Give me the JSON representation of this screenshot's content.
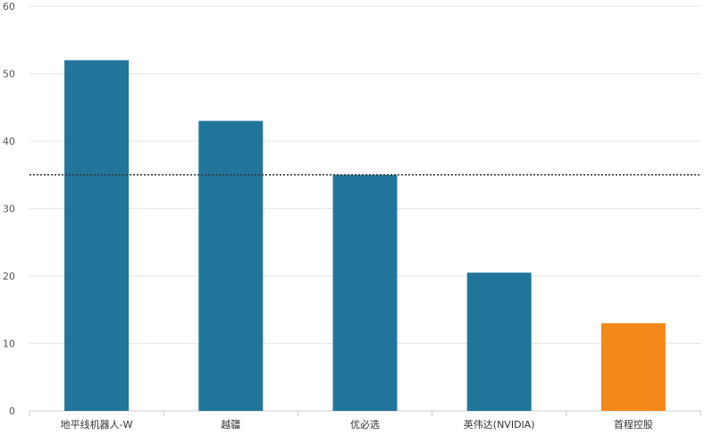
{
  "chart_data": {
    "type": "bar",
    "title": "",
    "xlabel": "",
    "ylabel": "",
    "categories": [
      "地平线机器人-W",
      "越疆",
      "优必选",
      "英伟达(NVIDIA)",
      "首程控股"
    ],
    "values": [
      52,
      43,
      35,
      20.5,
      13
    ],
    "bar_colors": [
      "#21759b",
      "#21759b",
      "#21759b",
      "#21759b",
      "#f4891a"
    ],
    "ylim": [
      0,
      60
    ],
    "yticks": [
      0,
      10,
      20,
      30,
      40,
      50,
      60
    ],
    "reference_line": {
      "value": 35,
      "style": "dotted",
      "color": "#333333"
    },
    "grid": true,
    "grid_color": "#e6e6e6"
  }
}
